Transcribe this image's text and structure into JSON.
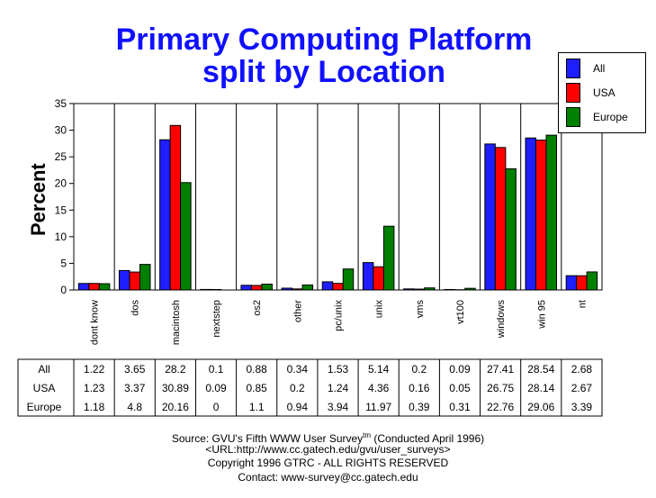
{
  "title_line1": "Primary Computing Platform",
  "title_line2": "split by Location",
  "ylabel": "Percent",
  "legend": [
    {
      "name": "All",
      "color": "#1e1eff"
    },
    {
      "name": "USA",
      "color": "#ff0000"
    },
    {
      "name": "Europe",
      "color": "#008000"
    }
  ],
  "footer": {
    "source_prefix": "Source: GVU's Fifth WWW User Survey",
    "source_sup": "tm",
    "source_suffix": "  (Conducted April 1996)",
    "url": "<URL:http://www.cc.gatech.edu/gvu/user_surveys>",
    "copyright": "Copyright 1996 GTRC -  ALL RIGHTS RESERVED",
    "contact": "Contact: www-survey@cc.gatech.edu"
  },
  "chart_data": {
    "type": "bar",
    "title": "Primary Computing Platform split by Location",
    "ylabel": "Percent",
    "ylim": [
      0,
      35
    ],
    "yticks": [
      0,
      5,
      10,
      15,
      20,
      25,
      30,
      35
    ],
    "grid": true,
    "legend_position": "top-right",
    "categories": [
      "dont know",
      "dos",
      "macintosh",
      "nextstep",
      "os2",
      "other",
      "pc/unix",
      "unix",
      "vms",
      "vt100",
      "windows",
      "win 95",
      "nt"
    ],
    "series": [
      {
        "name": "All",
        "color": "#1e1eff",
        "values": [
          1.22,
          3.65,
          28.2,
          0.1,
          0.88,
          0.34,
          1.53,
          5.14,
          0.2,
          0.09,
          27.41,
          28.54,
          2.68
        ],
        "labels": [
          "1.22",
          "3.65",
          "28.2",
          "0.1",
          "0.88",
          "0.34",
          "1.53",
          "5.14",
          "0.2",
          "0.09",
          "27.41",
          "28.54",
          "2.68"
        ]
      },
      {
        "name": "USA",
        "color": "#ff0000",
        "values": [
          1.23,
          3.37,
          30.89,
          0.09,
          0.85,
          0.2,
          1.24,
          4.36,
          0.16,
          0.05,
          26.75,
          28.14,
          2.67
        ],
        "labels": [
          "1.23",
          "3.37",
          "30.89",
          "0.09",
          "0.85",
          "0.2",
          "1.24",
          "4.36",
          "0.16",
          "0.05",
          "26.75",
          "28.14",
          "2.67"
        ]
      },
      {
        "name": "Europe",
        "color": "#008000",
        "values": [
          1.18,
          4.8,
          20.16,
          0,
          1.1,
          0.94,
          3.94,
          11.97,
          0.39,
          0.31,
          22.76,
          29.06,
          3.39
        ],
        "labels": [
          "1.18",
          "4.8",
          "20.16",
          "0",
          "1.1",
          "0.94",
          "3.94",
          "11.97",
          "0.39",
          "0.31",
          "22.76",
          "29.06",
          "3.39"
        ]
      }
    ]
  }
}
